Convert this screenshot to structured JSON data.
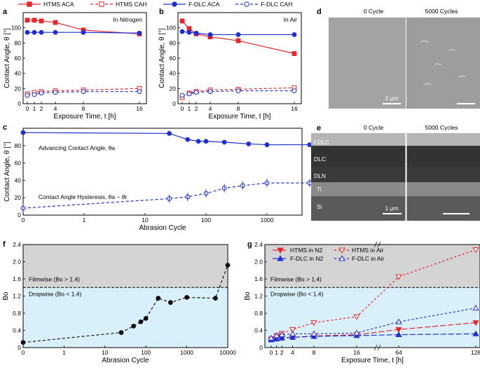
{
  "colors": {
    "red": "#e8252b",
    "blue": "#1f2fd1",
    "gray_region": "#d4d4d4",
    "blue_region": "#d9f0fa",
    "sem_bg": "#9a9a9a"
  },
  "legend_top": {
    "items": [
      {
        "label": "HTMS ACA",
        "color": "#e8252b",
        "marker": "square-filled",
        "dash": false
      },
      {
        "label": "HTMS CAH",
        "color": "#e8252b",
        "marker": "square-open",
        "dash": true
      },
      {
        "label": "F-DLC ACA",
        "color": "#1f2fd1",
        "marker": "circle-filled",
        "dash": false
      },
      {
        "label": "F-DLC CAH",
        "color": "#1f2fd1",
        "marker": "circle-open",
        "dash": true
      }
    ]
  },
  "panel_labels": {
    "a": "a",
    "b": "b",
    "c": "c",
    "d": "d",
    "e": "e",
    "f": "f",
    "g": "g"
  },
  "sem_d": {
    "left_title": "0 Cycle",
    "right_title": "5000 Cycles",
    "scale": "2 μm"
  },
  "sem_e": {
    "left_title": "0 Cycle",
    "right_title": "5000 Cycles",
    "scale": "1 μm",
    "layers": [
      "f-DLC",
      "DLC",
      "DLN",
      "Ti",
      "Si"
    ]
  },
  "chart_data": [
    {
      "id": "a",
      "type": "line",
      "annotation": "In Nitrogen",
      "xlabel": "Exposure Time, t [h]",
      "ylabel": "Contact Angle, θ [°]",
      "xlim": [
        -0.6,
        17
      ],
      "ylim": [
        0,
        120
      ],
      "xticks": [
        "0",
        "1",
        "2",
        "4",
        "8",
        "16"
      ],
      "xtick_values": [
        0,
        1,
        2,
        4,
        8,
        16
      ],
      "yticks": [
        "0",
        "20",
        "40",
        "60",
        "80",
        "100"
      ],
      "ytick_values": [
        0,
        20,
        40,
        60,
        80,
        100
      ],
      "series": [
        {
          "name": "HTMS ACA",
          "x": [
            0,
            1,
            2,
            4,
            8,
            16
          ],
          "y": [
            110,
            110,
            109,
            107,
            97,
            92
          ]
        },
        {
          "name": "HTMS CAH",
          "x": [
            0,
            1,
            2,
            4,
            8,
            16
          ],
          "y": [
            13,
            15,
            16,
            17,
            18,
            20
          ]
        },
        {
          "name": "F-DLC ACA",
          "x": [
            0,
            1,
            2,
            4,
            8,
            16
          ],
          "y": [
            94,
            94,
            94,
            94,
            94,
            93
          ]
        },
        {
          "name": "F-DLC CAH",
          "x": [
            0,
            1,
            2,
            4,
            8,
            16
          ],
          "y": [
            11,
            12,
            14,
            15,
            16,
            16
          ]
        }
      ]
    },
    {
      "id": "b",
      "type": "line",
      "annotation": "In Air",
      "xlabel": "Exposure Time, t [h]",
      "ylabel": "Contact Angle, θ [°]",
      "xlim": [
        -0.6,
        17
      ],
      "ylim": [
        0,
        120
      ],
      "xticks": [
        "0",
        "1",
        "2",
        "4",
        "8",
        "16"
      ],
      "xtick_values": [
        0,
        1,
        2,
        4,
        8,
        16
      ],
      "yticks": [
        "0",
        "20",
        "40",
        "60",
        "80",
        "100"
      ],
      "ytick_values": [
        0,
        20,
        40,
        60,
        80,
        100
      ],
      "series": [
        {
          "name": "HTMS ACA",
          "x": [
            0,
            1,
            2,
            4,
            8,
            16
          ],
          "y": [
            109,
            99,
            92,
            88,
            83,
            66
          ]
        },
        {
          "name": "HTMS CAH",
          "x": [
            0,
            1,
            2,
            4,
            8,
            16
          ],
          "y": [
            8,
            14,
            16,
            18,
            19,
            21
          ]
        },
        {
          "name": "F-DLC ACA",
          "x": [
            0,
            1,
            2,
            4,
            8,
            16
          ],
          "y": [
            95,
            94,
            93,
            91,
            91,
            91
          ]
        },
        {
          "name": "F-DLC CAH",
          "x": [
            0,
            1,
            2,
            4,
            8,
            16
          ],
          "y": [
            11,
            13,
            15,
            16,
            17,
            17
          ]
        }
      ]
    },
    {
      "id": "c",
      "type": "line",
      "xscale": "symlog",
      "xlabel": "Abrasion Cycle",
      "ylabel": "Contact Angle, θ [°]",
      "xlim": [
        0,
        6500
      ],
      "ylim": [
        0,
        100
      ],
      "xticks": [
        "0",
        "1",
        "10",
        "100",
        "1000"
      ],
      "xtick_values": [
        0,
        1,
        10,
        100,
        1000
      ],
      "yticks": [
        "0",
        "20",
        "40",
        "60",
        "80"
      ],
      "ytick_values": [
        0,
        20,
        40,
        60,
        80
      ],
      "annotations": [
        "Advancing Contact Angle, θa",
        "Contact Angle Hysteresis, θa − θr"
      ],
      "series": [
        {
          "name": "Advancing Contact Angle",
          "x": [
            0,
            25,
            50,
            75,
            100,
            200,
            500,
            1000,
            5000
          ],
          "y": [
            95,
            94,
            87,
            85,
            85,
            84,
            82,
            81,
            81
          ]
        },
        {
          "name": "Contact Angle Hysteresis",
          "x": [
            0,
            25,
            50,
            100,
            200,
            400,
            1000,
            5000
          ],
          "y": [
            8,
            19,
            21,
            25,
            31,
            34,
            37,
            37
          ]
        }
      ]
    },
    {
      "id": "f",
      "type": "line",
      "xscale": "symlog",
      "xlabel": "Abrasion Cycle",
      "ylabel": "Bo",
      "xlim": [
        0,
        11000
      ],
      "ylim": [
        0,
        2.4
      ],
      "xticks": [
        "0",
        "1",
        "10",
        "100",
        "1000",
        "10000"
      ],
      "xtick_values": [
        0,
        1,
        10,
        100,
        1000,
        10000
      ],
      "yticks": [
        "0",
        "0.4",
        "0.8",
        "1.2",
        "1.6",
        "2.0",
        "2.4"
      ],
      "ytick_values": [
        0,
        0.4,
        0.8,
        1.2,
        1.6,
        2.0,
        2.4
      ],
      "threshold": 1.4,
      "regions": [
        "Filmwise  (Bo > 1.4)",
        "Dropwise (Bo < 1.4)"
      ],
      "series": [
        {
          "name": "Bo",
          "x": [
            0,
            25,
            50,
            75,
            100,
            200,
            400,
            1000,
            5000,
            10000
          ],
          "y": [
            0.12,
            0.35,
            0.5,
            0.6,
            0.68,
            1.15,
            1.05,
            1.17,
            1.15,
            1.92
          ]
        }
      ]
    },
    {
      "id": "g",
      "type": "line",
      "xscale": "broken",
      "xlabel": "Exposure Time, t [h]",
      "ylabel": "Bo",
      "ylim": [
        0,
        2.4
      ],
      "xticks": [
        "0",
        "1",
        "2",
        "4",
        "8",
        "16",
        "64",
        "128"
      ],
      "xtick_values": [
        0,
        1,
        2,
        4,
        8,
        16,
        64,
        128
      ],
      "yticks": [
        "0",
        "0.4",
        "0.8",
        "1.2",
        "1.6",
        "2.0",
        "2.4"
      ],
      "ytick_values": [
        0,
        0.4,
        0.8,
        1.2,
        1.6,
        2.0,
        2.4
      ],
      "threshold": 1.4,
      "regions": [
        "Filmwise  (Bo > 1.4)",
        "Dropwise (Bo < 1.4)"
      ],
      "series": [
        {
          "name": "HTMS in N2",
          "x": [
            0,
            1,
            2,
            4,
            8,
            16,
            64,
            128
          ],
          "y": [
            0.2,
            0.22,
            0.23,
            0.24,
            0.27,
            0.3,
            0.42,
            0.58
          ]
        },
        {
          "name": "HTMS in Air",
          "x": [
            0,
            1,
            2,
            4,
            8,
            16,
            64,
            128
          ],
          "y": [
            0.2,
            0.28,
            0.33,
            0.42,
            0.58,
            0.72,
            1.65,
            2.28
          ]
        },
        {
          "name": "F-DLC in N2",
          "x": [
            0,
            1,
            2,
            4,
            8,
            16,
            64,
            128
          ],
          "y": [
            0.18,
            0.2,
            0.22,
            0.24,
            0.26,
            0.28,
            0.3,
            0.32
          ]
        },
        {
          "name": "F-DLC in Air",
          "x": [
            0,
            1,
            2,
            4,
            8,
            16,
            64,
            128
          ],
          "y": [
            0.22,
            0.28,
            0.3,
            0.32,
            0.32,
            0.34,
            0.6,
            0.92
          ]
        }
      ],
      "legend": [
        {
          "label": "HTMS in N2",
          "color": "#e8252b",
          "marker": "tri-down-filled",
          "dash": "long"
        },
        {
          "label": "HTMS in Air",
          "color": "#e8252b",
          "marker": "tri-down-open",
          "dash": "short"
        },
        {
          "label": "F-DLC in N2",
          "color": "#1f2fd1",
          "marker": "tri-up-filled",
          "dash": "long"
        },
        {
          "label": "F-DLC in Air",
          "color": "#1f2fd1",
          "marker": "tri-up-open",
          "dash": "short"
        }
      ]
    }
  ]
}
